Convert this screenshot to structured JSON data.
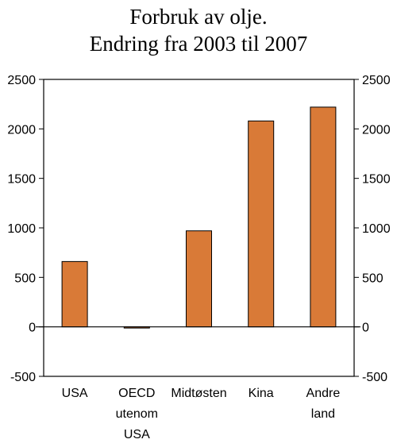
{
  "chart_data": {
    "type": "bar",
    "title_lines": [
      "Forbruk av olje.",
      "Endring fra 2003 til 2007"
    ],
    "categories": [
      [
        "USA"
      ],
      [
        "OECD",
        "utenom",
        "USA"
      ],
      [
        "Midtøsten"
      ],
      [
        "Kina"
      ],
      [
        "Andre",
        "land"
      ]
    ],
    "values": [
      660,
      -10,
      970,
      2080,
      2220
    ],
    "ylim": [
      -500,
      2500
    ],
    "yticks": [
      "-500",
      "0",
      "500",
      "1000",
      "1500",
      "2000",
      "2500"
    ],
    "ytick_values": [
      -500,
      0,
      500,
      1000,
      1500,
      2000,
      2500
    ],
    "bar_color": "#d97a37",
    "bar_edge_color": "#000000",
    "grid": false,
    "axes": "left-and-right"
  }
}
